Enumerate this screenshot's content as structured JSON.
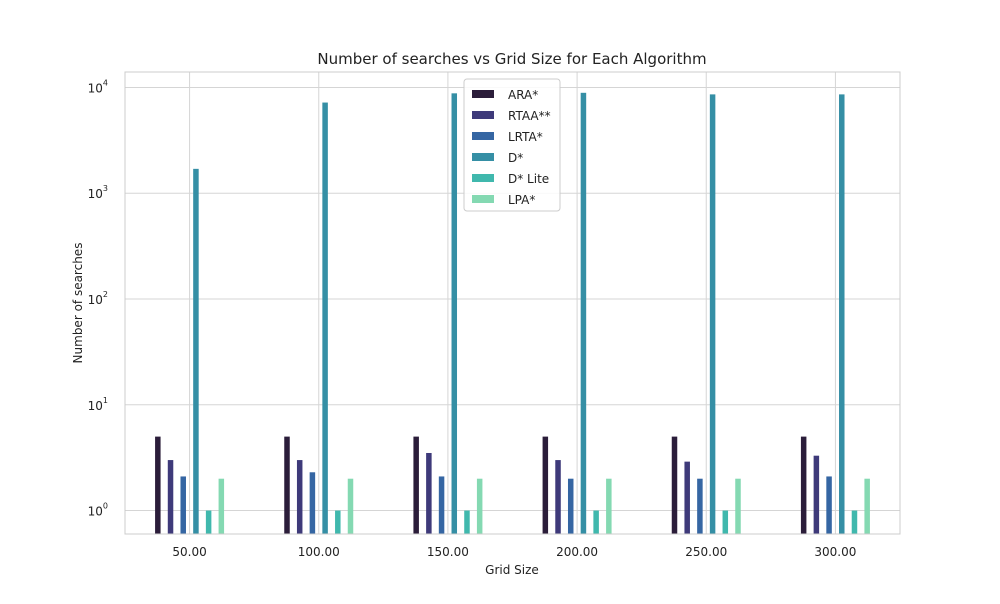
{
  "chart_data": {
    "type": "bar",
    "title": "Number of searches vs Grid Size for Each Algorithm",
    "xlabel": "Grid Size",
    "ylabel": "Number of searches",
    "yscale": "log",
    "ylim": [
      0.6,
      14000
    ],
    "categories": [
      "50.00",
      "100.00",
      "150.00",
      "200.00",
      "250.00",
      "300.00"
    ],
    "y_ticks": [
      {
        "base": "10",
        "exp": "0",
        "value": 1
      },
      {
        "base": "10",
        "exp": "1",
        "value": 10
      },
      {
        "base": "10",
        "exp": "2",
        "value": 100
      },
      {
        "base": "10",
        "exp": "3",
        "value": 1000
      },
      {
        "base": "10",
        "exp": "4",
        "value": 10000
      }
    ],
    "grid": true,
    "legend_position": "top-center",
    "series": [
      {
        "name": "ARA*",
        "color": "#2b1d3a",
        "values": [
          5,
          5,
          5,
          5,
          5,
          5
        ]
      },
      {
        "name": "RTAA**",
        "color": "#3e3a7a",
        "values": [
          3,
          3,
          3.5,
          3,
          2.9,
          3.3
        ]
      },
      {
        "name": "LRTA*",
        "color": "#3566a3",
        "values": [
          2.1,
          2.3,
          2.1,
          2,
          2,
          2.1
        ]
      },
      {
        "name": "D*",
        "color": "#358fa5",
        "values": [
          1700,
          7200,
          8800,
          8900,
          8600,
          8600
        ]
      },
      {
        "name": "D* Lite",
        "color": "#40b8ad",
        "values": [
          1,
          1,
          1,
          1,
          1,
          1
        ]
      },
      {
        "name": "LPA*",
        "color": "#84d9b2",
        "values": [
          2,
          2,
          2,
          2,
          2,
          2
        ]
      }
    ]
  }
}
